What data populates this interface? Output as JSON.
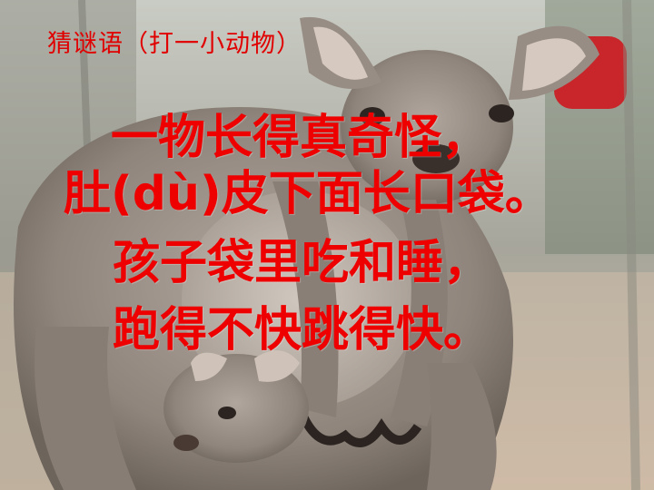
{
  "slide": {
    "title": "猜谜语（打一小动物）",
    "riddle_lines": [
      "一物长得真奇怪，",
      "肚(dù)皮下面长口袋。",
      "孩子袋里吃和睡，",
      "跑得不快跳得快。"
    ]
  },
  "background": {
    "subject": "kangaroo-with-joey-photo",
    "colors": {
      "fur": "#9a8f86",
      "dark": "#4a423c",
      "accent_red": "#c8262a",
      "text_red": "#ee0000"
    }
  }
}
